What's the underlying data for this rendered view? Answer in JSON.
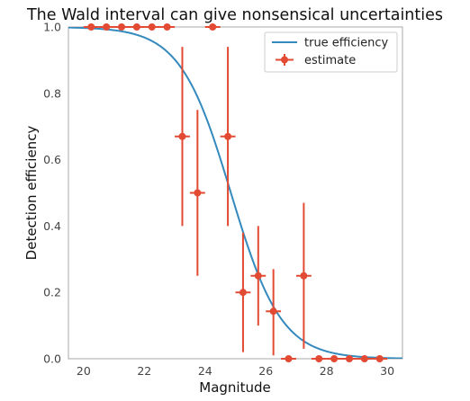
{
  "chart_data": {
    "type": "scatter",
    "title": "The Wald interval can give nonsensical uncertainties",
    "xlabel": "Magnitude",
    "ylabel": "Detection efficiency",
    "xlim": [
      19.5,
      30.5
    ],
    "ylim": [
      0.0,
      1.0
    ],
    "xticks": [
      "20",
      "22",
      "24",
      "26",
      "28",
      "30"
    ],
    "yticks": [
      "0.0",
      "0.2",
      "0.4",
      "0.6",
      "0.8",
      "1.0"
    ],
    "grid": false,
    "legend_position": "top-right",
    "series": [
      {
        "name": "true efficiency",
        "kind": "line",
        "color": "#348abd",
        "model": {
          "midpoint": 24.85,
          "slope": 1.2
        }
      },
      {
        "name": "estimate",
        "kind": "errorbar",
        "color": "#e24a33",
        "x_halfwidth": 0.25,
        "points": [
          {
            "x": 20.25,
            "y": 1.0,
            "lo": 1.0,
            "hi": 1.0
          },
          {
            "x": 20.75,
            "y": 1.0,
            "lo": 1.0,
            "hi": 1.0
          },
          {
            "x": 21.25,
            "y": 1.0,
            "lo": 1.0,
            "hi": 1.0
          },
          {
            "x": 21.75,
            "y": 1.0,
            "lo": 1.0,
            "hi": 1.0
          },
          {
            "x": 22.25,
            "y": 1.0,
            "lo": 1.0,
            "hi": 1.0
          },
          {
            "x": 22.75,
            "y": 1.0,
            "lo": 1.0,
            "hi": 1.0
          },
          {
            "x": 23.25,
            "y": 0.67,
            "lo": 0.4,
            "hi": 0.94
          },
          {
            "x": 23.75,
            "y": 0.5,
            "lo": 0.25,
            "hi": 0.75
          },
          {
            "x": 24.25,
            "y": 1.0,
            "lo": 1.0,
            "hi": 1.0
          },
          {
            "x": 24.75,
            "y": 0.67,
            "lo": 0.4,
            "hi": 0.94
          },
          {
            "x": 25.25,
            "y": 0.2,
            "lo": 0.02,
            "hi": 0.38
          },
          {
            "x": 25.75,
            "y": 0.25,
            "lo": 0.1,
            "hi": 0.4
          },
          {
            "x": 26.25,
            "y": 0.143,
            "lo": 0.01,
            "hi": 0.27
          },
          {
            "x": 26.75,
            "y": 0.0,
            "lo": 0.0,
            "hi": 0.0
          },
          {
            "x": 27.25,
            "y": 0.25,
            "lo": 0.03,
            "hi": 0.47
          },
          {
            "x": 27.75,
            "y": 0.0,
            "lo": 0.0,
            "hi": 0.0
          },
          {
            "x": 28.25,
            "y": 0.0,
            "lo": 0.0,
            "hi": 0.0
          },
          {
            "x": 28.75,
            "y": 0.0,
            "lo": 0.0,
            "hi": 0.0
          },
          {
            "x": 29.25,
            "y": 0.0,
            "lo": 0.0,
            "hi": 0.0
          },
          {
            "x": 29.75,
            "y": 0.0,
            "lo": 0.0,
            "hi": 0.0
          }
        ]
      }
    ]
  }
}
